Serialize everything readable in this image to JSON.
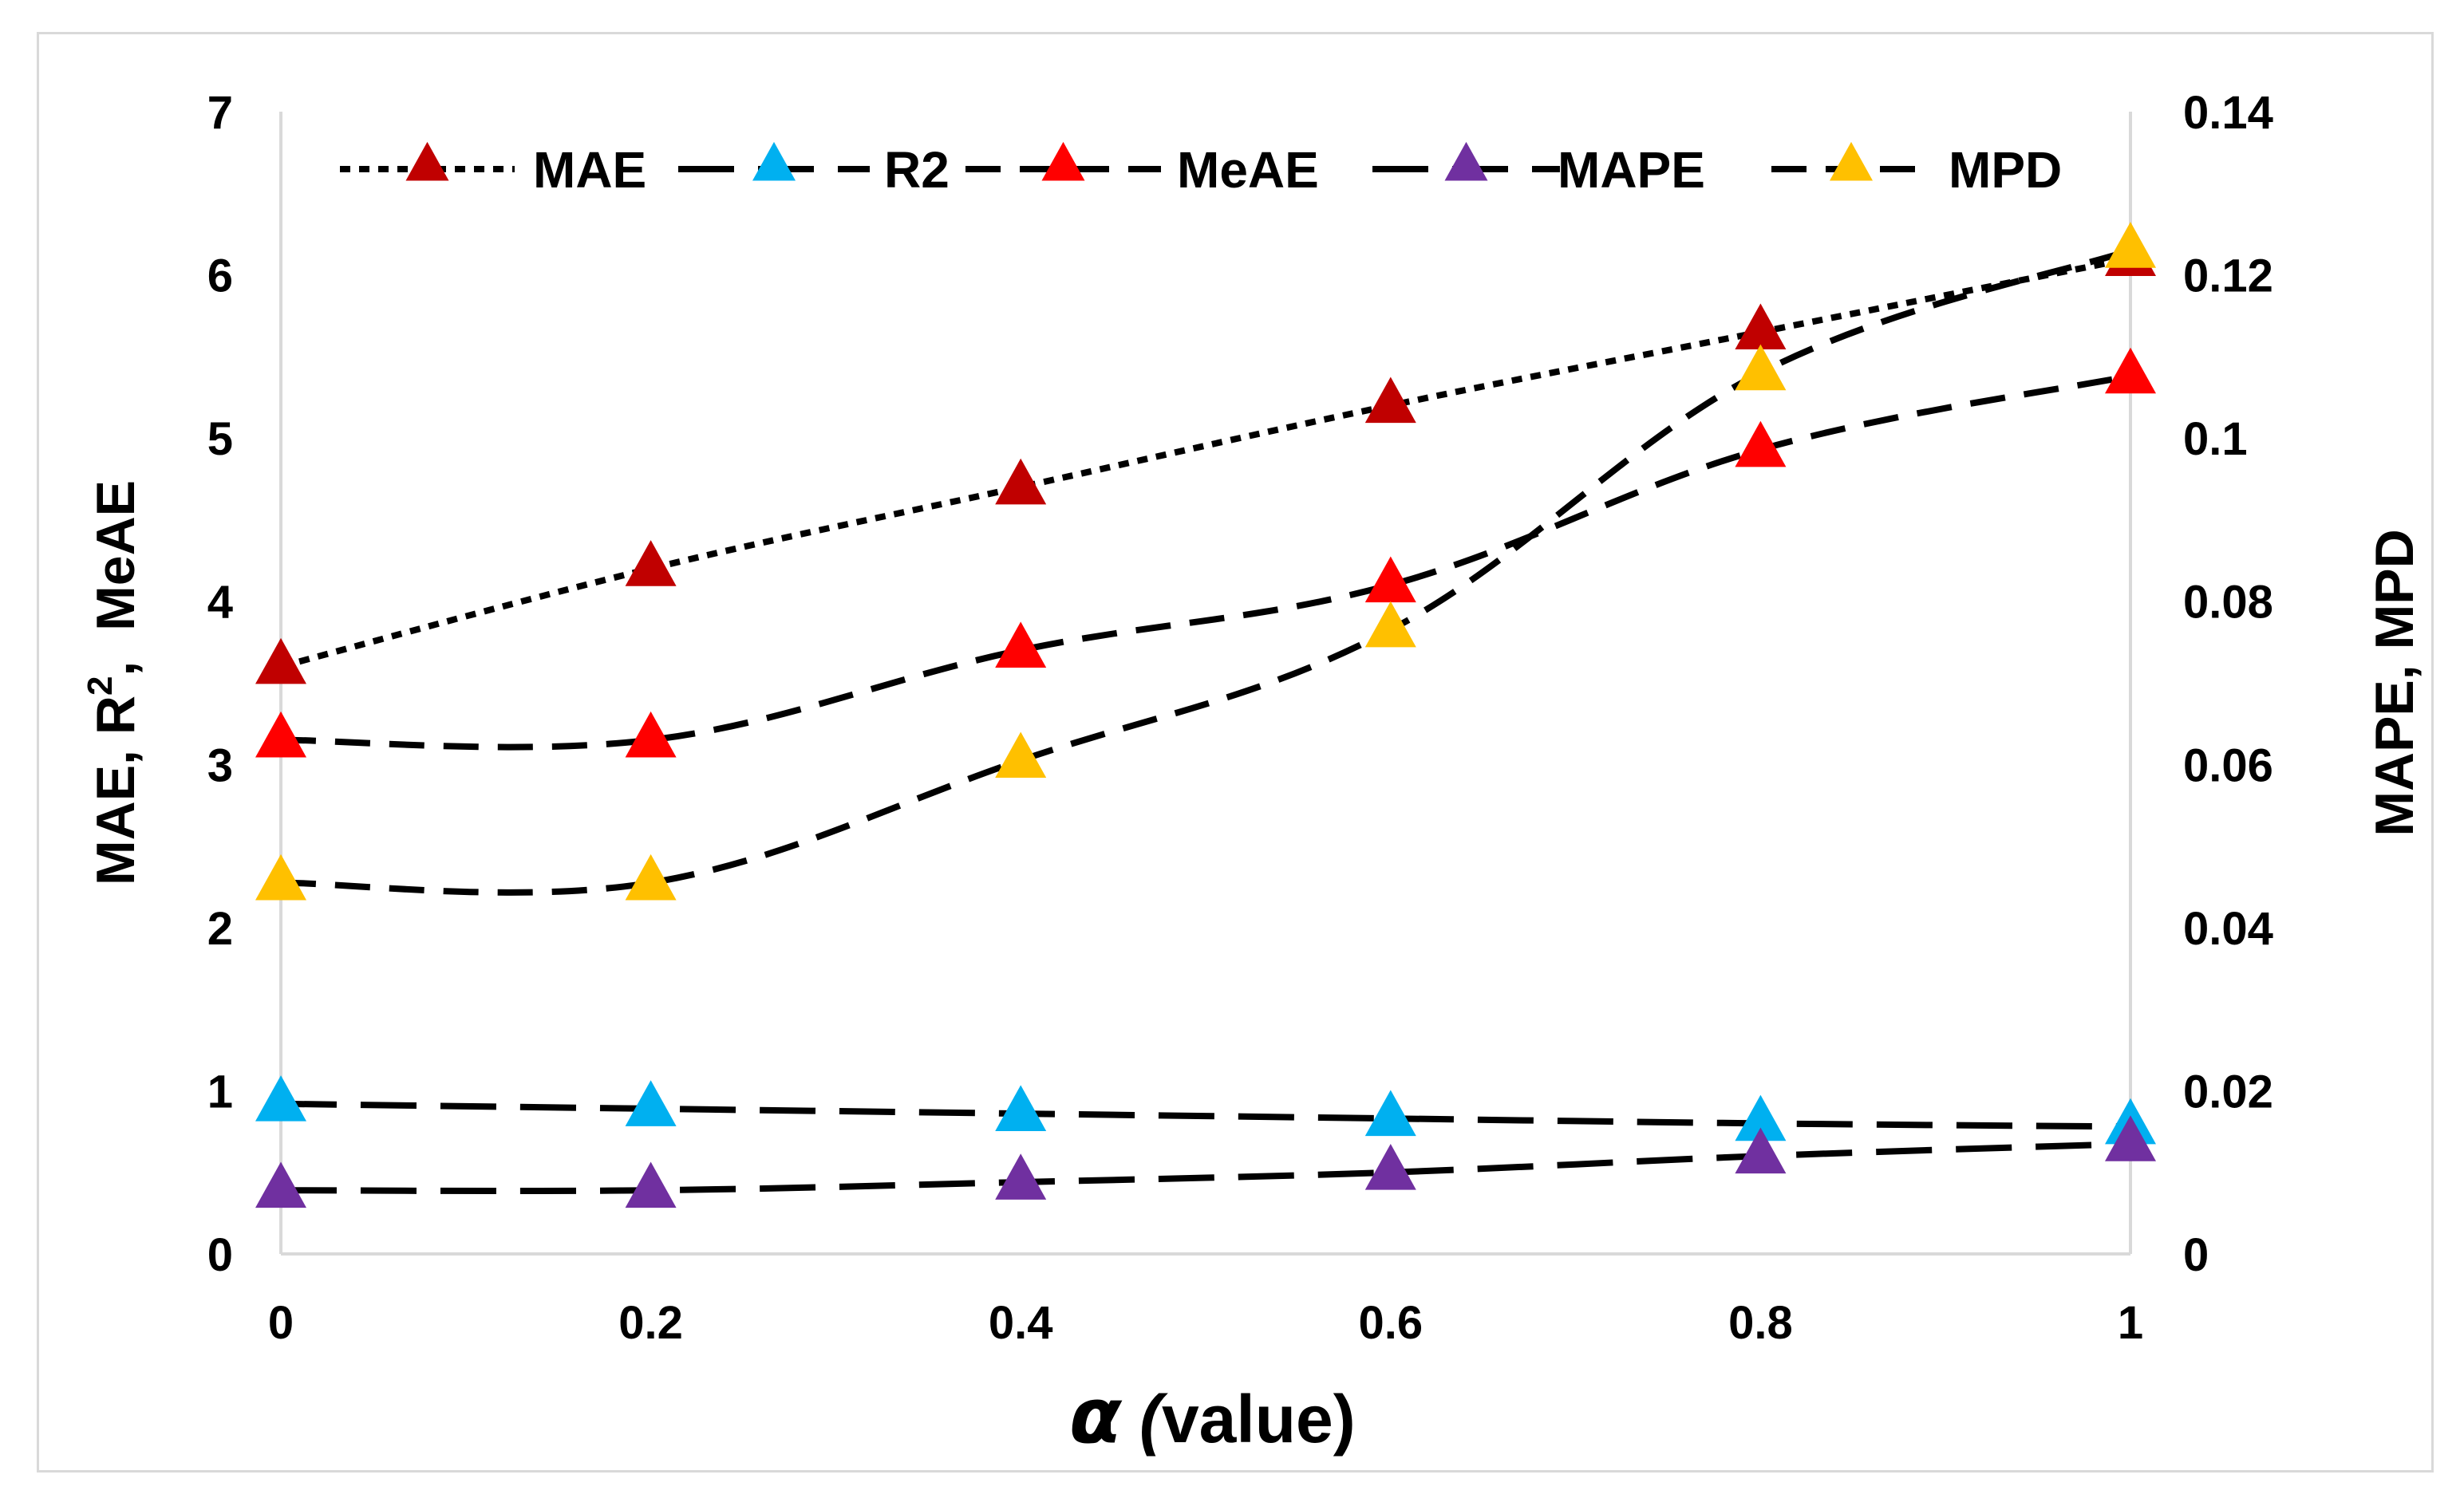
{
  "chart_data": {
    "type": "line",
    "title": "",
    "x": [
      0,
      0.2,
      0.4,
      0.6,
      0.8,
      1
    ],
    "x_tick_labels": [
      "0",
      "0.2",
      "0.4",
      "0.6",
      "0.8",
      "1"
    ],
    "xlabel_symbol": "α",
    "xlabel_text": "(value)",
    "xlabel_open_paren": "(",
    "xlabel_rest": "value)",
    "xlim": [
      0,
      1
    ],
    "ylabel_left": "MAE, R², MeAE",
    "ylabel_left_parts": {
      "pre": "MAE, R",
      "sup": "2",
      "post": ",  MeAE"
    },
    "ylim_left": [
      0,
      7
    ],
    "y_tick_labels_left": [
      "0",
      "1",
      "2",
      "3",
      "4",
      "5",
      "6",
      "7"
    ],
    "ylabel_right": "MAPE, MPD",
    "ylim_right": [
      0,
      0.14
    ],
    "y_tick_labels_right": [
      "0",
      "0.02",
      "0.04",
      "0.06",
      "0.08",
      "0.1",
      "0.12",
      "0.14"
    ],
    "grid": false,
    "legend_position": "top",
    "series": [
      {
        "name": "MAE",
        "axis": "left",
        "color": "#c00000",
        "line_style": "dotted",
        "values": [
          3.6,
          4.2,
          4.7,
          5.2,
          5.65,
          6.1
        ]
      },
      {
        "name": "R2",
        "axis": "left",
        "color": "#00b0f0",
        "line_style": "long-dash",
        "values": [
          0.92,
          0.89,
          0.86,
          0.83,
          0.8,
          0.78
        ]
      },
      {
        "name": "MeAE",
        "axis": "left",
        "color": "#ff0000",
        "line_style": "dash",
        "values": [
          3.15,
          3.15,
          3.7,
          4.1,
          4.93,
          5.38
        ]
      },
      {
        "name": "MAPE",
        "axis": "right",
        "color": "#7030a0",
        "line_style": "long-dash",
        "values": [
          0.0078,
          0.0078,
          0.0088,
          0.01,
          0.012,
          0.0135
        ]
      },
      {
        "name": "MPD",
        "axis": "right",
        "color": "#ffc000",
        "line_style": "dash",
        "values": [
          0.0455,
          0.0455,
          0.0605,
          0.0765,
          0.108,
          0.123
        ]
      }
    ]
  }
}
